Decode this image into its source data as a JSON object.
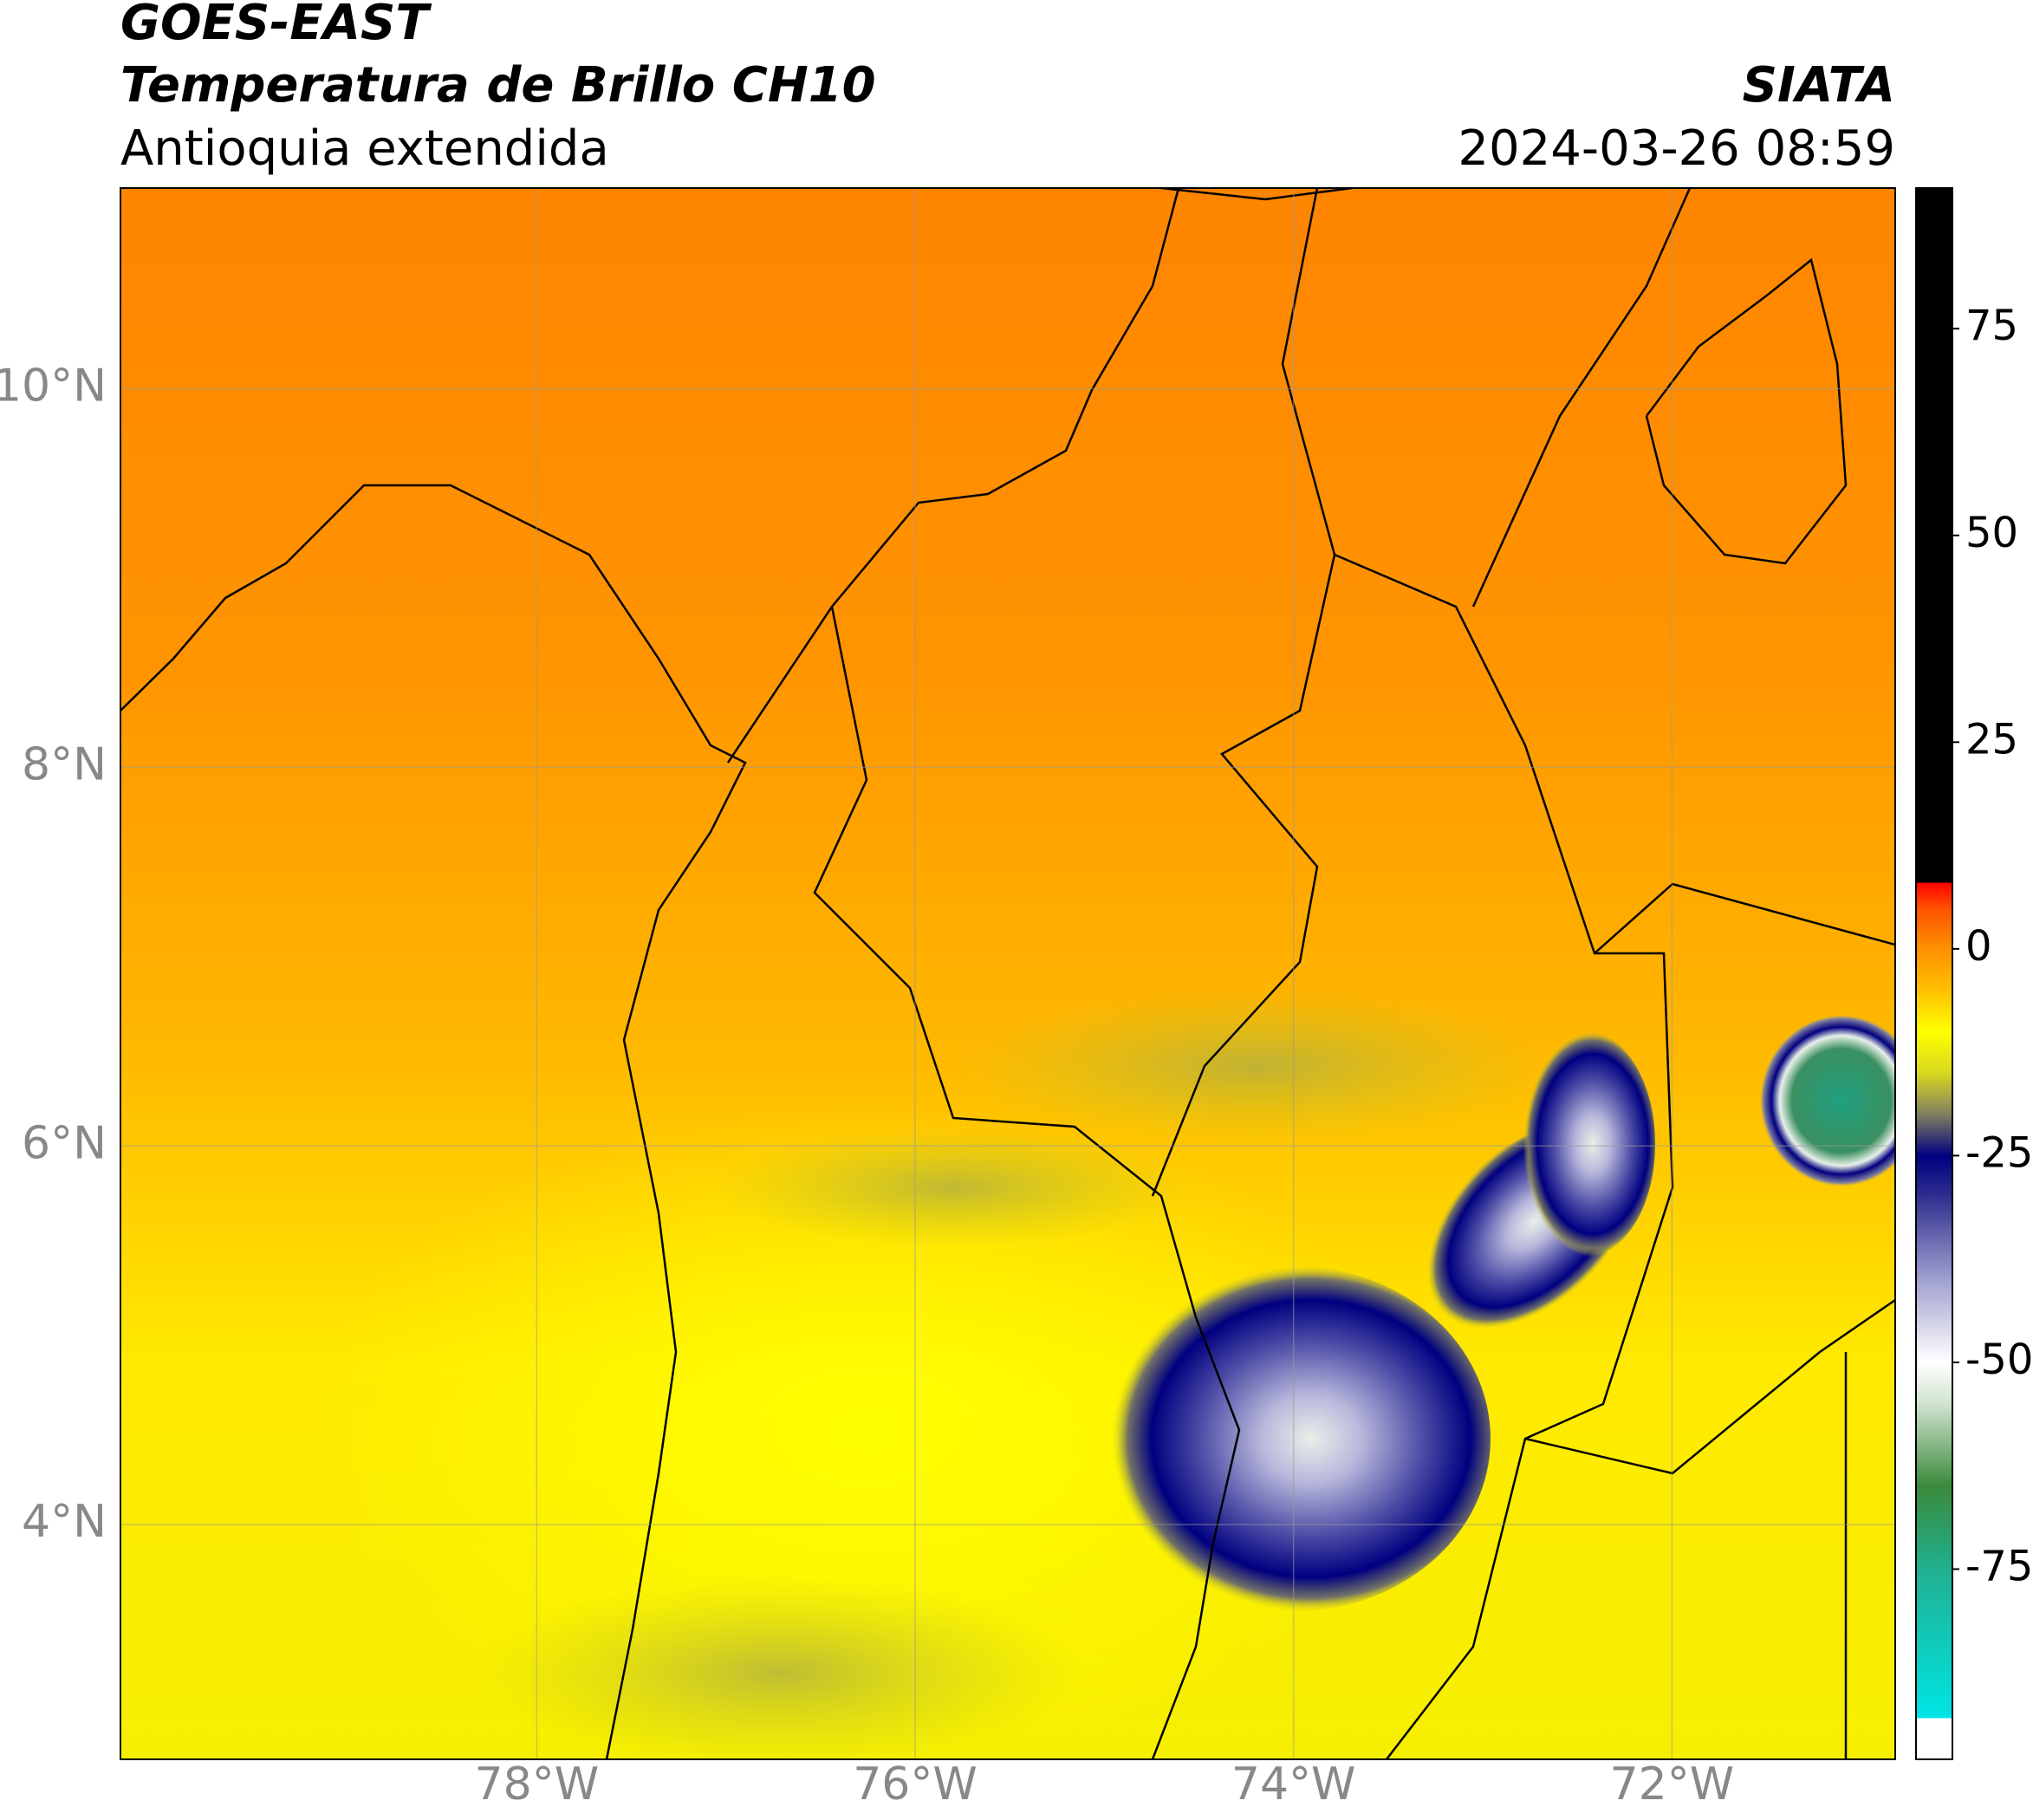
{
  "header": {
    "satellite": "GOES-EAST",
    "product": "Temperatura de Brillo CH10",
    "region": "Antioquia extendida",
    "source": "SIATA",
    "timestamp": "2024-03-26 08:59"
  },
  "map": {
    "type": "map",
    "lonlim": [
      -80.2,
      -70.82
    ],
    "latlim": [
      2.76,
      11.06
    ],
    "grid": true,
    "lon_ticks": [
      {
        "value": -78,
        "label": "78°W"
      },
      {
        "value": -76,
        "label": "76°W"
      },
      {
        "value": -74,
        "label": "74°W"
      },
      {
        "value": -72,
        "label": "72°W"
      }
    ],
    "lat_ticks": [
      {
        "value": 4,
        "label": "4°N"
      },
      {
        "value": 6,
        "label": "6°N"
      },
      {
        "value": 8,
        "label": "8°N"
      },
      {
        "value": 10,
        "label": "10°N"
      }
    ]
  },
  "colorbar": {
    "lim": [
      -98,
      92
    ],
    "ticks": [
      -75,
      -50,
      -25,
      0,
      25,
      50,
      75
    ],
    "stops": [
      {
        "value": -98,
        "color": "#ffffff"
      },
      {
        "value": -93,
        "color": "#ffffff"
      },
      {
        "value": -93,
        "color": "#00e5e5"
      },
      {
        "value": -75,
        "color": "#20b090"
      },
      {
        "value": -65,
        "color": "#3a8a3a"
      },
      {
        "value": -55,
        "color": "#d0e4d0"
      },
      {
        "value": -50,
        "color": "#ffffff"
      },
      {
        "value": -40,
        "color": "#a0a0d0"
      },
      {
        "value": -30,
        "color": "#303090"
      },
      {
        "value": -25,
        "color": "#000080"
      },
      {
        "value": -20,
        "color": "#808060"
      },
      {
        "value": -15,
        "color": "#d8d820"
      },
      {
        "value": -10,
        "color": "#ffff00"
      },
      {
        "value": -5,
        "color": "#ffc000"
      },
      {
        "value": 0,
        "color": "#ff9000"
      },
      {
        "value": 5,
        "color": "#ff5000"
      },
      {
        "value": 8,
        "color": "#ff0000"
      },
      {
        "value": 8,
        "color": "#000000"
      },
      {
        "value": 92,
        "color": "#000000"
      }
    ]
  }
}
